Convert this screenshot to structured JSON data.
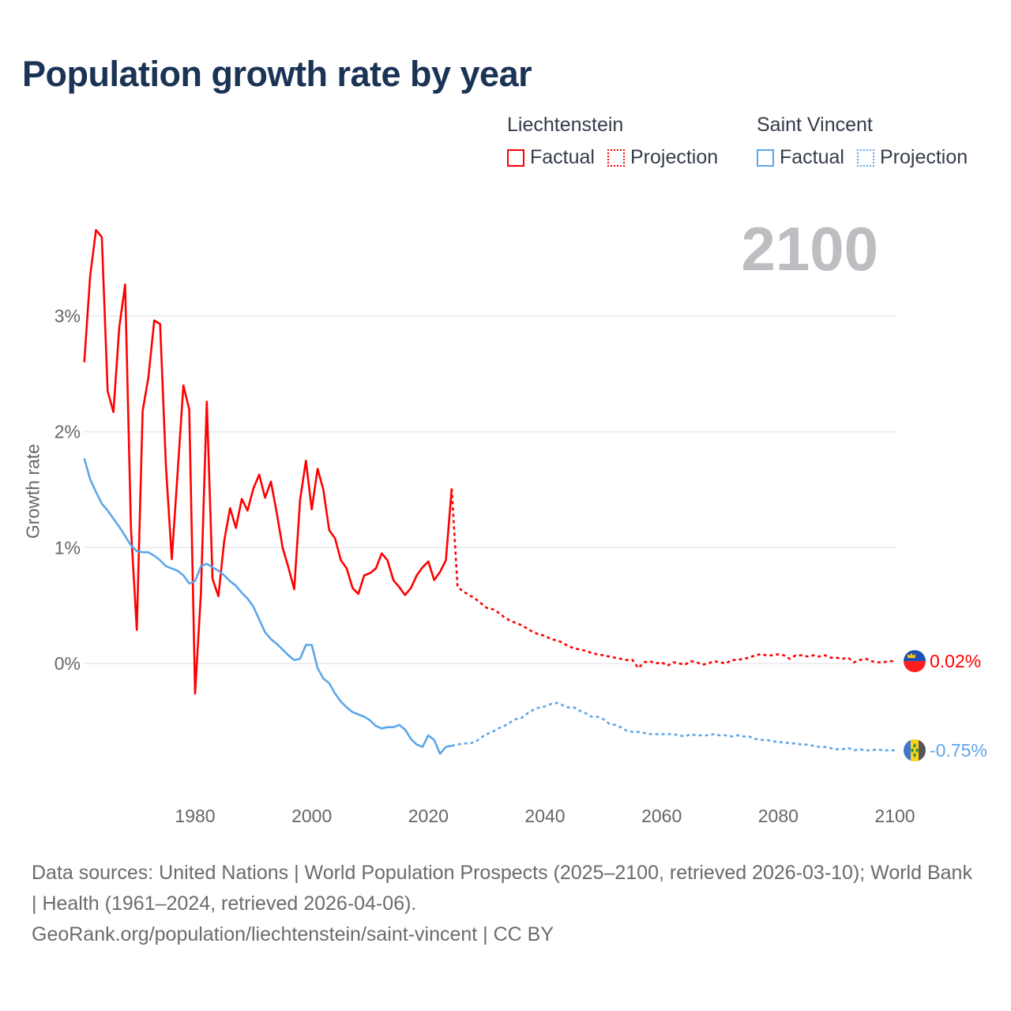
{
  "chart_data": {
    "type": "line",
    "title": "Population growth rate by year",
    "ylabel": "Growth rate",
    "xlabel": "",
    "year_display": "2100",
    "xlim": [
      1961,
      2100
    ],
    "ylim": [
      -1.0,
      3.8
    ],
    "x_ticks": [
      1980,
      2000,
      2020,
      2040,
      2060,
      2080,
      2100
    ],
    "x_tick_labels": [
      "1980",
      "2000",
      "2020",
      "2040",
      "2060",
      "2080",
      "2100"
    ],
    "y_ticks": [
      0,
      1,
      2,
      3
    ],
    "y_tick_labels": [
      "0%",
      "1%",
      "2%",
      "3%"
    ],
    "grid": true,
    "legend": {
      "placement": "top-right",
      "groups": [
        {
          "name": "Liechtenstein",
          "items": [
            "Factual",
            "Projection"
          ]
        },
        {
          "name": "Saint Vincent",
          "items": [
            "Factual",
            "Projection"
          ]
        }
      ]
    },
    "series": [
      {
        "name": "Liechtenstein",
        "color": "#ff0000",
        "end_label": "0.02%",
        "factual_start": 1961,
        "factual": [
          2.6,
          3.34,
          3.74,
          3.68,
          2.35,
          2.17,
          2.9,
          3.27,
          1.17,
          0.29,
          2.18,
          2.47,
          2.96,
          2.93,
          1.7,
          0.9,
          1.64,
          2.4,
          2.19,
          -0.26,
          0.61,
          2.26,
          0.73,
          0.58,
          1.06,
          1.34,
          1.17,
          1.42,
          1.32,
          1.51,
          1.63,
          1.43,
          1.57,
          1.3,
          1.0,
          0.83,
          0.64,
          1.41,
          1.75,
          1.33,
          1.68,
          1.5,
          1.15,
          1.08,
          0.89,
          0.82,
          0.65,
          0.6,
          0.76,
          0.78,
          0.82,
          0.95,
          0.89,
          0.72,
          0.66,
          0.59,
          0.65,
          0.76,
          0.83,
          0.88,
          0.72,
          0.79,
          0.89,
          1.51
        ],
        "projection_start": 2025,
        "projection": [
          0.66,
          0.62,
          0.59,
          0.56,
          0.52,
          0.48,
          0.47,
          0.44,
          0.4,
          0.37,
          0.35,
          0.33,
          0.3,
          0.27,
          0.25,
          0.24,
          0.21,
          0.2,
          0.18,
          0.15,
          0.13,
          0.12,
          0.11,
          0.09,
          0.08,
          0.07,
          0.06,
          0.05,
          0.04,
          0.03,
          0.03,
          -0.04,
          0.01,
          0.02,
          0.0,
          0.01,
          -0.02,
          0.01,
          0.0,
          -0.01,
          0.02,
          0.01,
          -0.01,
          0.0,
          0.02,
          0.01,
          0.0,
          0.03,
          0.03,
          0.04,
          0.05,
          0.07,
          0.08,
          0.07,
          0.07,
          0.08,
          0.07,
          0.04,
          0.07,
          0.07,
          0.06,
          0.07,
          0.06,
          0.07,
          0.05,
          0.05,
          0.04,
          0.05,
          0.01,
          0.03,
          0.04,
          0.02,
          0.01,
          0.01,
          0.02,
          0.02
        ]
      },
      {
        "name": "Saint Vincent",
        "color": "#5ea6ea",
        "end_label": "-0.75%",
        "factual_start": 1961,
        "factual": [
          1.77,
          1.59,
          1.48,
          1.38,
          1.32,
          1.25,
          1.18,
          1.1,
          1.02,
          0.97,
          0.96,
          0.96,
          0.93,
          0.89,
          0.84,
          0.82,
          0.8,
          0.76,
          0.69,
          0.71,
          0.84,
          0.86,
          0.83,
          0.8,
          0.76,
          0.71,
          0.67,
          0.61,
          0.56,
          0.49,
          0.38,
          0.27,
          0.21,
          0.17,
          0.12,
          0.07,
          0.03,
          0.04,
          0.16,
          0.16,
          -0.04,
          -0.13,
          -0.17,
          -0.26,
          -0.33,
          -0.38,
          -0.42,
          -0.44,
          -0.46,
          -0.49,
          -0.54,
          -0.56,
          -0.55,
          -0.55,
          -0.53,
          -0.57,
          -0.65,
          -0.7,
          -0.72,
          -0.62,
          -0.66,
          -0.78,
          -0.72,
          -0.71
        ],
        "projection_start": 2025,
        "projection": [
          -0.7,
          -0.69,
          -0.69,
          -0.68,
          -0.64,
          -0.61,
          -0.59,
          -0.56,
          -0.54,
          -0.51,
          -0.48,
          -0.47,
          -0.43,
          -0.4,
          -0.38,
          -0.37,
          -0.35,
          -0.34,
          -0.36,
          -0.38,
          -0.38,
          -0.41,
          -0.43,
          -0.46,
          -0.46,
          -0.48,
          -0.52,
          -0.53,
          -0.55,
          -0.58,
          -0.59,
          -0.59,
          -0.6,
          -0.61,
          -0.61,
          -0.61,
          -0.61,
          -0.61,
          -0.62,
          -0.63,
          -0.61,
          -0.62,
          -0.62,
          -0.62,
          -0.61,
          -0.62,
          -0.62,
          -0.63,
          -0.62,
          -0.63,
          -0.63,
          -0.65,
          -0.66,
          -0.66,
          -0.67,
          -0.68,
          -0.68,
          -0.69,
          -0.69,
          -0.7,
          -0.7,
          -0.71,
          -0.72,
          -0.72,
          -0.73,
          -0.74,
          -0.74,
          -0.73,
          -0.75,
          -0.74,
          -0.75,
          -0.75,
          -0.74,
          -0.75,
          -0.75,
          -0.75
        ]
      }
    ]
  },
  "footer": {
    "sources": "Data sources: United Nations | World Population Prospects (2025–2100, retrieved 2026-03-10); World Bank | Health (1961–2024, retrieved 2026-04-06).",
    "credit": "GeoRank.org/population/liechtenstein/saint-vincent | CC BY"
  }
}
